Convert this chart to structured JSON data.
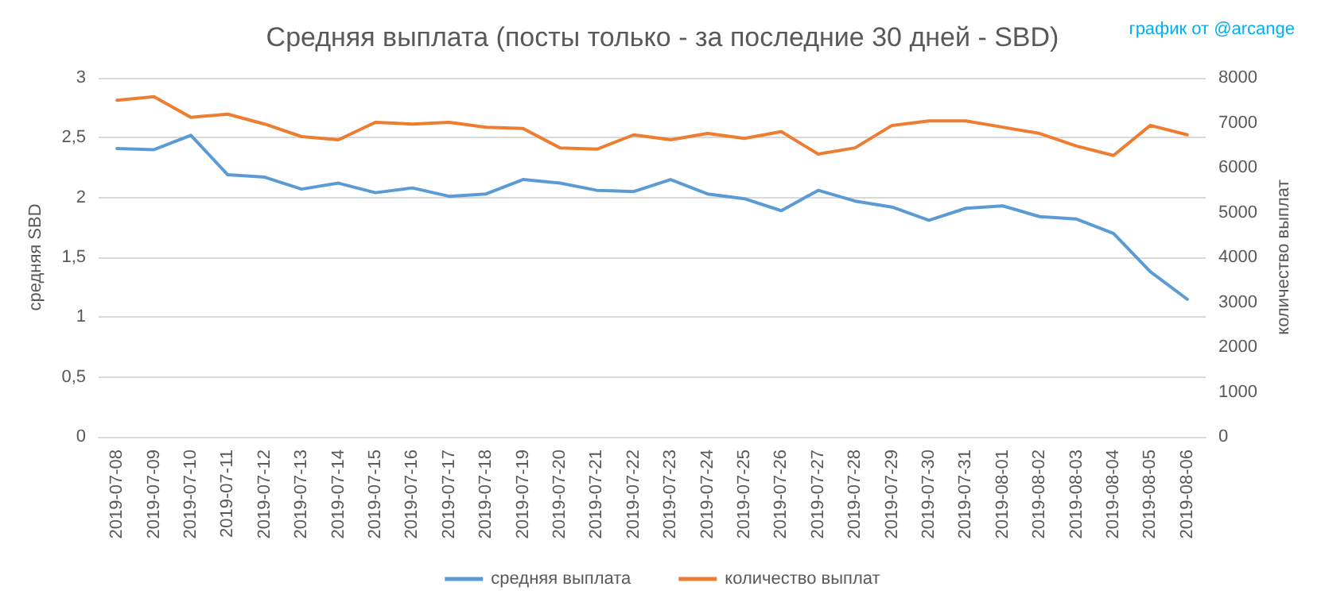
{
  "chart_data": {
    "type": "line",
    "title": "Средняя выплата (посты только - за последние 30 дней - SBD)",
    "ylabel": "средняя SBD",
    "y2label": "количество выплат",
    "annotations": [
      "график от @arcange"
    ],
    "categories": [
      "2019-07-08",
      "2019-07-09",
      "2019-07-10",
      "2019-07-11",
      "2019-07-12",
      "2019-07-13",
      "2019-07-14",
      "2019-07-15",
      "2019-07-16",
      "2019-07-17",
      "2019-07-18",
      "2019-07-19",
      "2019-07-20",
      "2019-07-21",
      "2019-07-22",
      "2019-07-23",
      "2019-07-24",
      "2019-07-25",
      "2019-07-26",
      "2019-07-27",
      "2019-07-28",
      "2019-07-29",
      "2019-07-30",
      "2019-07-31",
      "2019-08-01",
      "2019-08-02",
      "2019-08-03",
      "2019-08-04",
      "2019-08-05",
      "2019-08-06"
    ],
    "series": [
      {
        "name": "средняя выплата",
        "color": "#5b9bd5",
        "values": [
          2.41,
          2.4,
          2.52,
          2.19,
          2.17,
          2.07,
          2.12,
          2.04,
          2.08,
          2.01,
          2.03,
          2.15,
          2.12,
          2.06,
          2.05,
          2.15,
          2.03,
          1.99,
          1.89,
          2.06,
          1.97,
          1.92,
          1.81,
          1.91,
          1.93,
          1.84,
          1.82,
          1.7,
          1.38,
          1.15
        ]
      },
      {
        "name": "количество выплат",
        "color": "#ed7d31",
        "axis": "y2",
        "values": [
          7500,
          7580,
          7120,
          7190,
          6970,
          6690,
          6620,
          7010,
          6970,
          7010,
          6900,
          6870,
          6440,
          6410,
          6730,
          6620,
          6760,
          6650,
          6800,
          6300,
          6440,
          6940,
          7040,
          7040,
          6900,
          6760,
          6480,
          6270,
          6940,
          6730
        ]
      }
    ],
    "ylim": [
      0,
      3
    ],
    "yticks": [
      0,
      {
        "value": 0.5,
        "label": "0,5"
      },
      1,
      {
        "value": 1.5,
        "label": "1,5"
      },
      2,
      {
        "value": 2.5,
        "label": "2,5"
      },
      3
    ],
    "y2lim": [
      0,
      8000
    ],
    "y2ticks": [
      0,
      1000,
      2000,
      3000,
      4000,
      5000,
      6000,
      7000,
      8000
    ],
    "grid": "y",
    "legend": "bottom",
    "marker": "none",
    "line_style": "solid"
  }
}
